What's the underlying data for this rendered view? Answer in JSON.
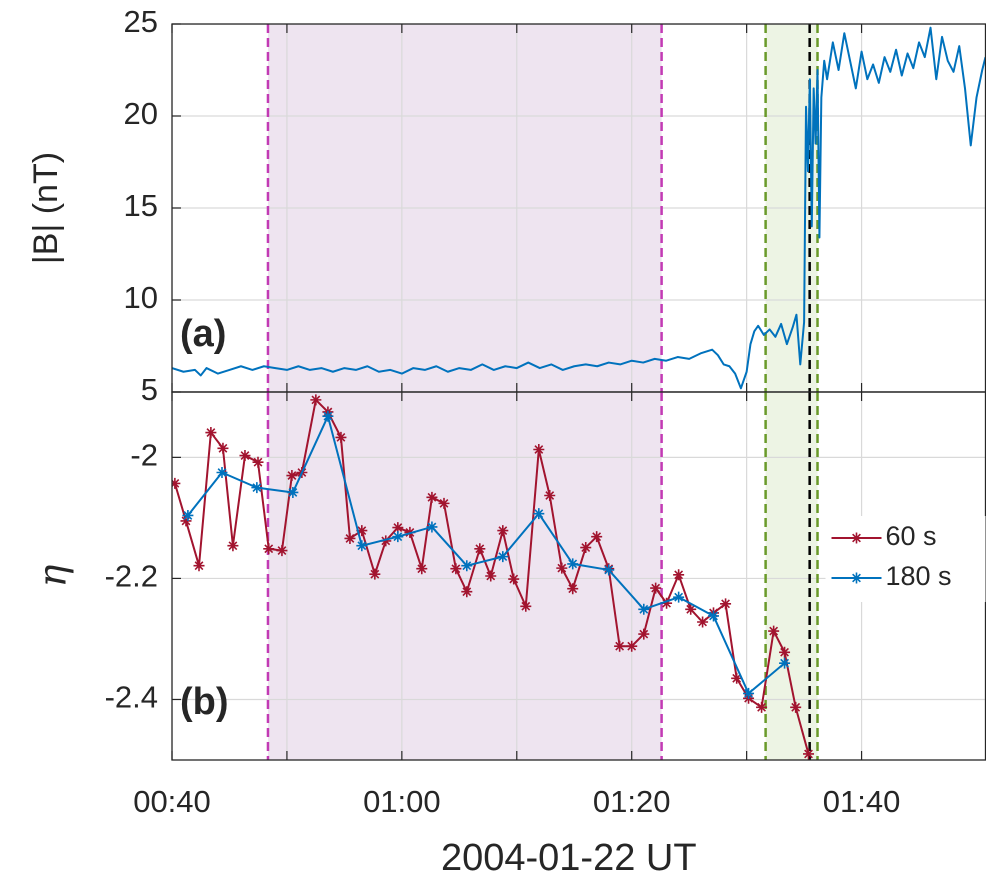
{
  "chart_data": [
    {
      "type": "line",
      "panel_label": "(a)",
      "ylabel": "|B| (nT)",
      "xlim": [
        "00:40:00",
        "01:50:47"
      ],
      "ylim": [
        5,
        25
      ],
      "yticks": [
        5,
        10,
        15,
        20,
        25
      ],
      "grid": true,
      "spans": [
        {
          "start": "00:48:21",
          "end": "01:22:36",
          "color": "#7e2f8e",
          "edge_color": "#c23ab4"
        },
        {
          "start": "01:31:39",
          "end": "01:36:10",
          "color": "#77ac30",
          "edge_color": "#6a9a2a"
        }
      ],
      "vlines": [
        {
          "x": "01:35:29",
          "color": "#000000"
        }
      ],
      "x": [
        "00:40:00",
        "00:41:00",
        "00:42:00",
        "00:42:30",
        "00:43:00",
        "00:44:00",
        "00:45:00",
        "00:46:00",
        "00:47:00",
        "00:48:00",
        "00:49:00",
        "00:50:00",
        "00:51:00",
        "00:52:00",
        "00:53:00",
        "00:54:00",
        "00:55:00",
        "00:56:00",
        "00:57:00",
        "00:58:00",
        "00:59:00",
        "01:00:00",
        "01:01:00",
        "01:02:00",
        "01:03:00",
        "01:04:00",
        "01:05:00",
        "01:06:00",
        "01:07:00",
        "01:08:00",
        "01:09:00",
        "01:10:00",
        "01:11:00",
        "01:12:00",
        "01:13:00",
        "01:14:00",
        "01:15:00",
        "01:16:00",
        "01:17:00",
        "01:18:00",
        "01:19:00",
        "01:20:00",
        "01:21:00",
        "01:22:00",
        "01:23:00",
        "01:24:00",
        "01:25:00",
        "01:26:00",
        "01:27:00",
        "01:27:30",
        "01:28:00",
        "01:28:30",
        "01:29:00",
        "01:29:30",
        "01:30:00",
        "01:30:20",
        "01:30:40",
        "01:31:00",
        "01:31:30",
        "01:32:00",
        "01:32:30",
        "01:33:00",
        "01:33:30",
        "01:34:00",
        "01:34:20",
        "01:34:40",
        "01:35:00",
        "01:35:10",
        "01:35:20",
        "01:35:30",
        "01:35:40",
        "01:35:50",
        "01:36:00",
        "01:36:10",
        "01:36:20",
        "01:36:30",
        "01:36:45",
        "01:37:00",
        "01:37:30",
        "01:38:00",
        "01:38:30",
        "01:39:00",
        "01:39:30",
        "01:40:00",
        "01:40:30",
        "01:41:00",
        "01:41:30",
        "01:42:00",
        "01:42:30",
        "01:43:00",
        "01:43:30",
        "01:44:00",
        "01:44:30",
        "01:45:00",
        "01:45:30",
        "01:46:00",
        "01:46:30",
        "01:47:00",
        "01:47:30",
        "01:48:00",
        "01:48:30",
        "01:49:00",
        "01:49:30",
        "01:50:00",
        "01:50:30",
        "01:50:47"
      ],
      "series": [
        {
          "name": "|B|",
          "color": "#0072bd",
          "values": [
            6.3,
            6.1,
            6.2,
            5.9,
            6.3,
            6.0,
            6.2,
            6.4,
            6.2,
            6.4,
            6.3,
            6.2,
            6.4,
            6.2,
            6.3,
            6.1,
            6.3,
            6.2,
            6.4,
            6.1,
            6.2,
            6.0,
            6.3,
            6.2,
            6.4,
            6.1,
            6.3,
            6.2,
            6.5,
            6.2,
            6.4,
            6.3,
            6.6,
            6.3,
            6.5,
            6.2,
            6.4,
            6.5,
            6.4,
            6.6,
            6.5,
            6.7,
            6.6,
            6.8,
            6.7,
            6.9,
            6.8,
            7.1,
            7.3,
            7.0,
            6.5,
            6.4,
            6.0,
            5.2,
            6.1,
            7.6,
            8.3,
            8.6,
            8.1,
            8.4,
            8.0,
            8.7,
            7.6,
            8.5,
            9.2,
            6.5,
            8.8,
            20.5,
            17.0,
            22.0,
            14.0,
            21.5,
            18.5,
            22.5,
            13.4,
            21.0,
            23.0,
            22.0,
            24.0,
            22.5,
            24.5,
            23.0,
            21.5,
            23.5,
            22.0,
            22.8,
            21.8,
            23.2,
            22.4,
            23.6,
            22.2,
            23.4,
            22.6,
            24.0,
            23.2,
            24.8,
            22.0,
            24.3,
            23.0,
            22.4,
            23.8,
            21.5,
            18.4,
            21.0,
            22.5,
            23.2
          ]
        }
      ]
    },
    {
      "type": "line",
      "panel_label": "(b)",
      "ylabel": "η",
      "xlabel": "2004-01-22 UT",
      "xlim": [
        "00:40:00",
        "01:50:47"
      ],
      "ylim": [
        -2.5,
        -1.892
      ],
      "yticks": [
        -2.4,
        -2.2,
        -2
      ],
      "grid": true,
      "legend": "right",
      "xticks": [
        {
          "value": "00:40:00",
          "label": "00:40"
        },
        {
          "value": "01:00:00",
          "label": "01:00"
        },
        {
          "value": "01:20:00",
          "label": "01:20"
        },
        {
          "value": "01:40:00",
          "label": "01:40"
        }
      ],
      "xminor_ticks": [
        "00:50:00",
        "01:10:00",
        "01:30:00"
      ],
      "series": [
        {
          "name": "60 s",
          "color": "#a2142f",
          "x": [
            "00:40:15",
            "00:41:13",
            "00:42:21",
            "00:43:23",
            "00:44:26",
            "00:45:18",
            "00:46:21",
            "00:47:29",
            "00:48:25",
            "00:49:34",
            "00:50:26",
            "00:51:18",
            "00:52:31",
            "00:53:34",
            "00:54:42",
            "00:55:29",
            "00:56:31",
            "00:57:39",
            "00:58:36",
            "00:59:39",
            "01:00:42",
            "01:01:44",
            "01:02:37",
            "01:03:40",
            "01:04:42",
            "01:05:39",
            "01:06:47",
            "01:07:44",
            "01:08:47",
            "01:09:44",
            "01:10:47",
            "01:11:55",
            "01:12:52",
            "01:13:55",
            "01:14:52",
            "01:16:00",
            "01:16:57",
            "01:18:00",
            "01:18:57",
            "01:20:00",
            "01:21:03",
            "01:22:05",
            "01:23:02",
            "01:24:05",
            "01:25:08",
            "01:26:10",
            "01:27:07",
            "01:28:10",
            "01:29:08",
            "01:30:10",
            "01:31:18",
            "01:32:21",
            "01:33:18",
            "01:34:16",
            "01:35:23"
          ],
          "values": [
            -2.043,
            -2.105,
            -2.179,
            -1.959,
            -1.985,
            -2.146,
            -1.997,
            -2.008,
            -2.151,
            -2.154,
            -2.03,
            -2.025,
            -1.905,
            -1.925,
            -1.967,
            -2.134,
            -2.121,
            -2.193,
            -2.138,
            -2.116,
            -2.124,
            -2.184,
            -2.066,
            -2.076,
            -2.184,
            -2.222,
            -2.151,
            -2.196,
            -2.121,
            -2.201,
            -2.246,
            -1.987,
            -2.063,
            -2.183,
            -2.217,
            -2.149,
            -2.131,
            -2.184,
            -2.312,
            -2.312,
            -2.292,
            -2.216,
            -2.241,
            -2.194,
            -2.251,
            -2.272,
            -2.257,
            -2.242,
            -2.365,
            -2.398,
            -2.413,
            -2.287,
            -2.322,
            -2.413,
            -2.49
          ]
        },
        {
          "name": "180 s",
          "color": "#0072bd",
          "x": [
            "00:41:23",
            "00:44:21",
            "00:47:23",
            "00:50:31",
            "00:53:34",
            "00:56:31",
            "00:59:39",
            "01:02:37",
            "01:05:39",
            "01:08:47",
            "01:11:55",
            "01:14:52",
            "01:18:00",
            "01:21:03",
            "01:24:05",
            "01:27:07",
            "01:30:10",
            "01:33:18"
          ],
          "values": [
            -2.096,
            -2.025,
            -2.05,
            -2.058,
            -1.932,
            -2.146,
            -2.131,
            -2.115,
            -2.179,
            -2.164,
            -2.093,
            -2.176,
            -2.186,
            -2.251,
            -2.231,
            -2.262,
            -2.39,
            -2.34
          ]
        }
      ]
    }
  ]
}
